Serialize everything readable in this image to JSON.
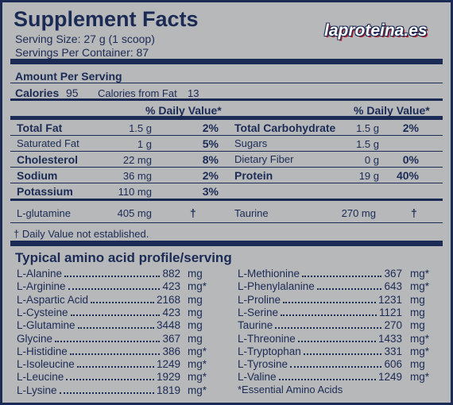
{
  "header": {
    "title": "Supplement Facts",
    "serving_size": "Serving Size: 27 g (1 scoop)",
    "servings_per_container": "Servings Per Container: 87",
    "logo": "laproteina.es"
  },
  "amount_per_serving": "Amount Per Serving",
  "calories": {
    "label": "Calories",
    "value": "95",
    "fat_label": "Calories from Fat",
    "fat_value": "13"
  },
  "daily_value_header": [
    "% Daily Value*",
    "% Daily Value*"
  ],
  "nutrients": {
    "left": [
      {
        "name": "Total Fat",
        "amount": "1.5 g",
        "dv": "2%",
        "bold": true
      },
      {
        "name": "Saturated Fat",
        "amount": "1 g",
        "dv": "5%",
        "bold": false
      },
      {
        "name": "Cholesterol",
        "amount": "22 mg",
        "dv": "8%",
        "bold": true
      },
      {
        "name": "Sodium",
        "amount": "36 mg",
        "dv": "2%",
        "bold": true
      },
      {
        "name": "Potassium",
        "amount": "110 mg",
        "dv": "3%",
        "bold": true
      }
    ],
    "right": [
      {
        "name": "Total Carbohydrate",
        "amount": "1.5 g",
        "dv": "2%",
        "bold": true
      },
      {
        "name": "Sugars",
        "amount": "1.5 g",
        "bold": false
      },
      {
        "name": "Dietary Fiber",
        "amount": "0 g",
        "dv": "0%",
        "bold": false
      },
      {
        "name": "Protein",
        "amount": "19 g",
        "dv": "40%",
        "bold": true
      }
    ]
  },
  "other": [
    {
      "name": "L-glutamine",
      "amount": "405 mg",
      "dv": "†"
    },
    {
      "name": "Taurine",
      "amount": "270 mg",
      "dv": "†"
    }
  ],
  "footnote": "† Daily Value not established.",
  "amino": {
    "title": "Typical amino acid profile/serving",
    "left": [
      {
        "name": "L-Alanine",
        "amount": "882",
        "unit": "mg"
      },
      {
        "name": "L-Arginine",
        "amount": "423",
        "unit": "mg*"
      },
      {
        "name": "L-Aspartic Acid",
        "amount": "2168",
        "unit": "mg"
      },
      {
        "name": "L-Cysteine",
        "amount": "423",
        "unit": "mg"
      },
      {
        "name": "L-Glutamine",
        "amount": "3448",
        "unit": "mg"
      },
      {
        "name": "Glycine",
        "amount": "367",
        "unit": "mg"
      },
      {
        "name": "L-Histidine",
        "amount": "386",
        "unit": "mg*"
      },
      {
        "name": "L-Isoleucine",
        "amount": "1249",
        "unit": "mg*"
      },
      {
        "name": "L-Leucine",
        "amount": "1929",
        "unit": "mg*"
      },
      {
        "name": "L-Lysine",
        "amount": "1819",
        "unit": "mg*"
      }
    ],
    "right": [
      {
        "name": "L-Methionine",
        "amount": "367",
        "unit": "mg*"
      },
      {
        "name": "L-Phenylalanine",
        "amount": "643",
        "unit": "mg*"
      },
      {
        "name": "L-Proline",
        "amount": "1231",
        "unit": "mg"
      },
      {
        "name": "L-Serine",
        "amount": "1121",
        "unit": "mg"
      },
      {
        "name": "Taurine",
        "amount": "270",
        "unit": "mg"
      },
      {
        "name": "L-Threonine",
        "amount": "1433",
        "unit": "mg*"
      },
      {
        "name": "L-Tryptophan",
        "amount": "331",
        "unit": "mg*"
      },
      {
        "name": "L-Tyrosine",
        "amount": "606",
        "unit": "mg"
      },
      {
        "name": "L-Valine",
        "amount": "1249",
        "unit": "mg*"
      }
    ],
    "note": "*Essential Amino Acids"
  }
}
